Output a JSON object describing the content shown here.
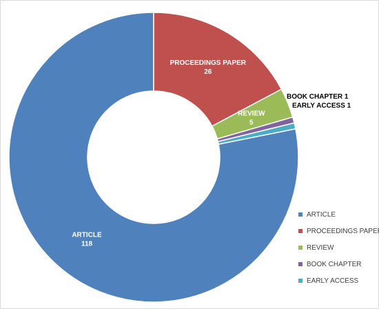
{
  "chart_data": {
    "type": "pie",
    "donut": true,
    "title": "",
    "legend_position": "right-bottom",
    "slices": [
      {
        "name": "ARTICLE",
        "value": 118,
        "color": "#4f81bd",
        "label_inside": true
      },
      {
        "name": "PROCEEDINGS PAPER",
        "value": 26,
        "color": "#c0504d",
        "label_inside": true
      },
      {
        "name": "REVIEW",
        "value": 5,
        "color": "#9bbb59",
        "label_inside": true
      },
      {
        "name": "BOOK CHAPTER",
        "value": 1,
        "color": "#8064a2",
        "label_inside": false
      },
      {
        "name": "EARLY ACCESS",
        "value": 1,
        "color": "#4bacc6",
        "label_inside": false
      }
    ]
  }
}
